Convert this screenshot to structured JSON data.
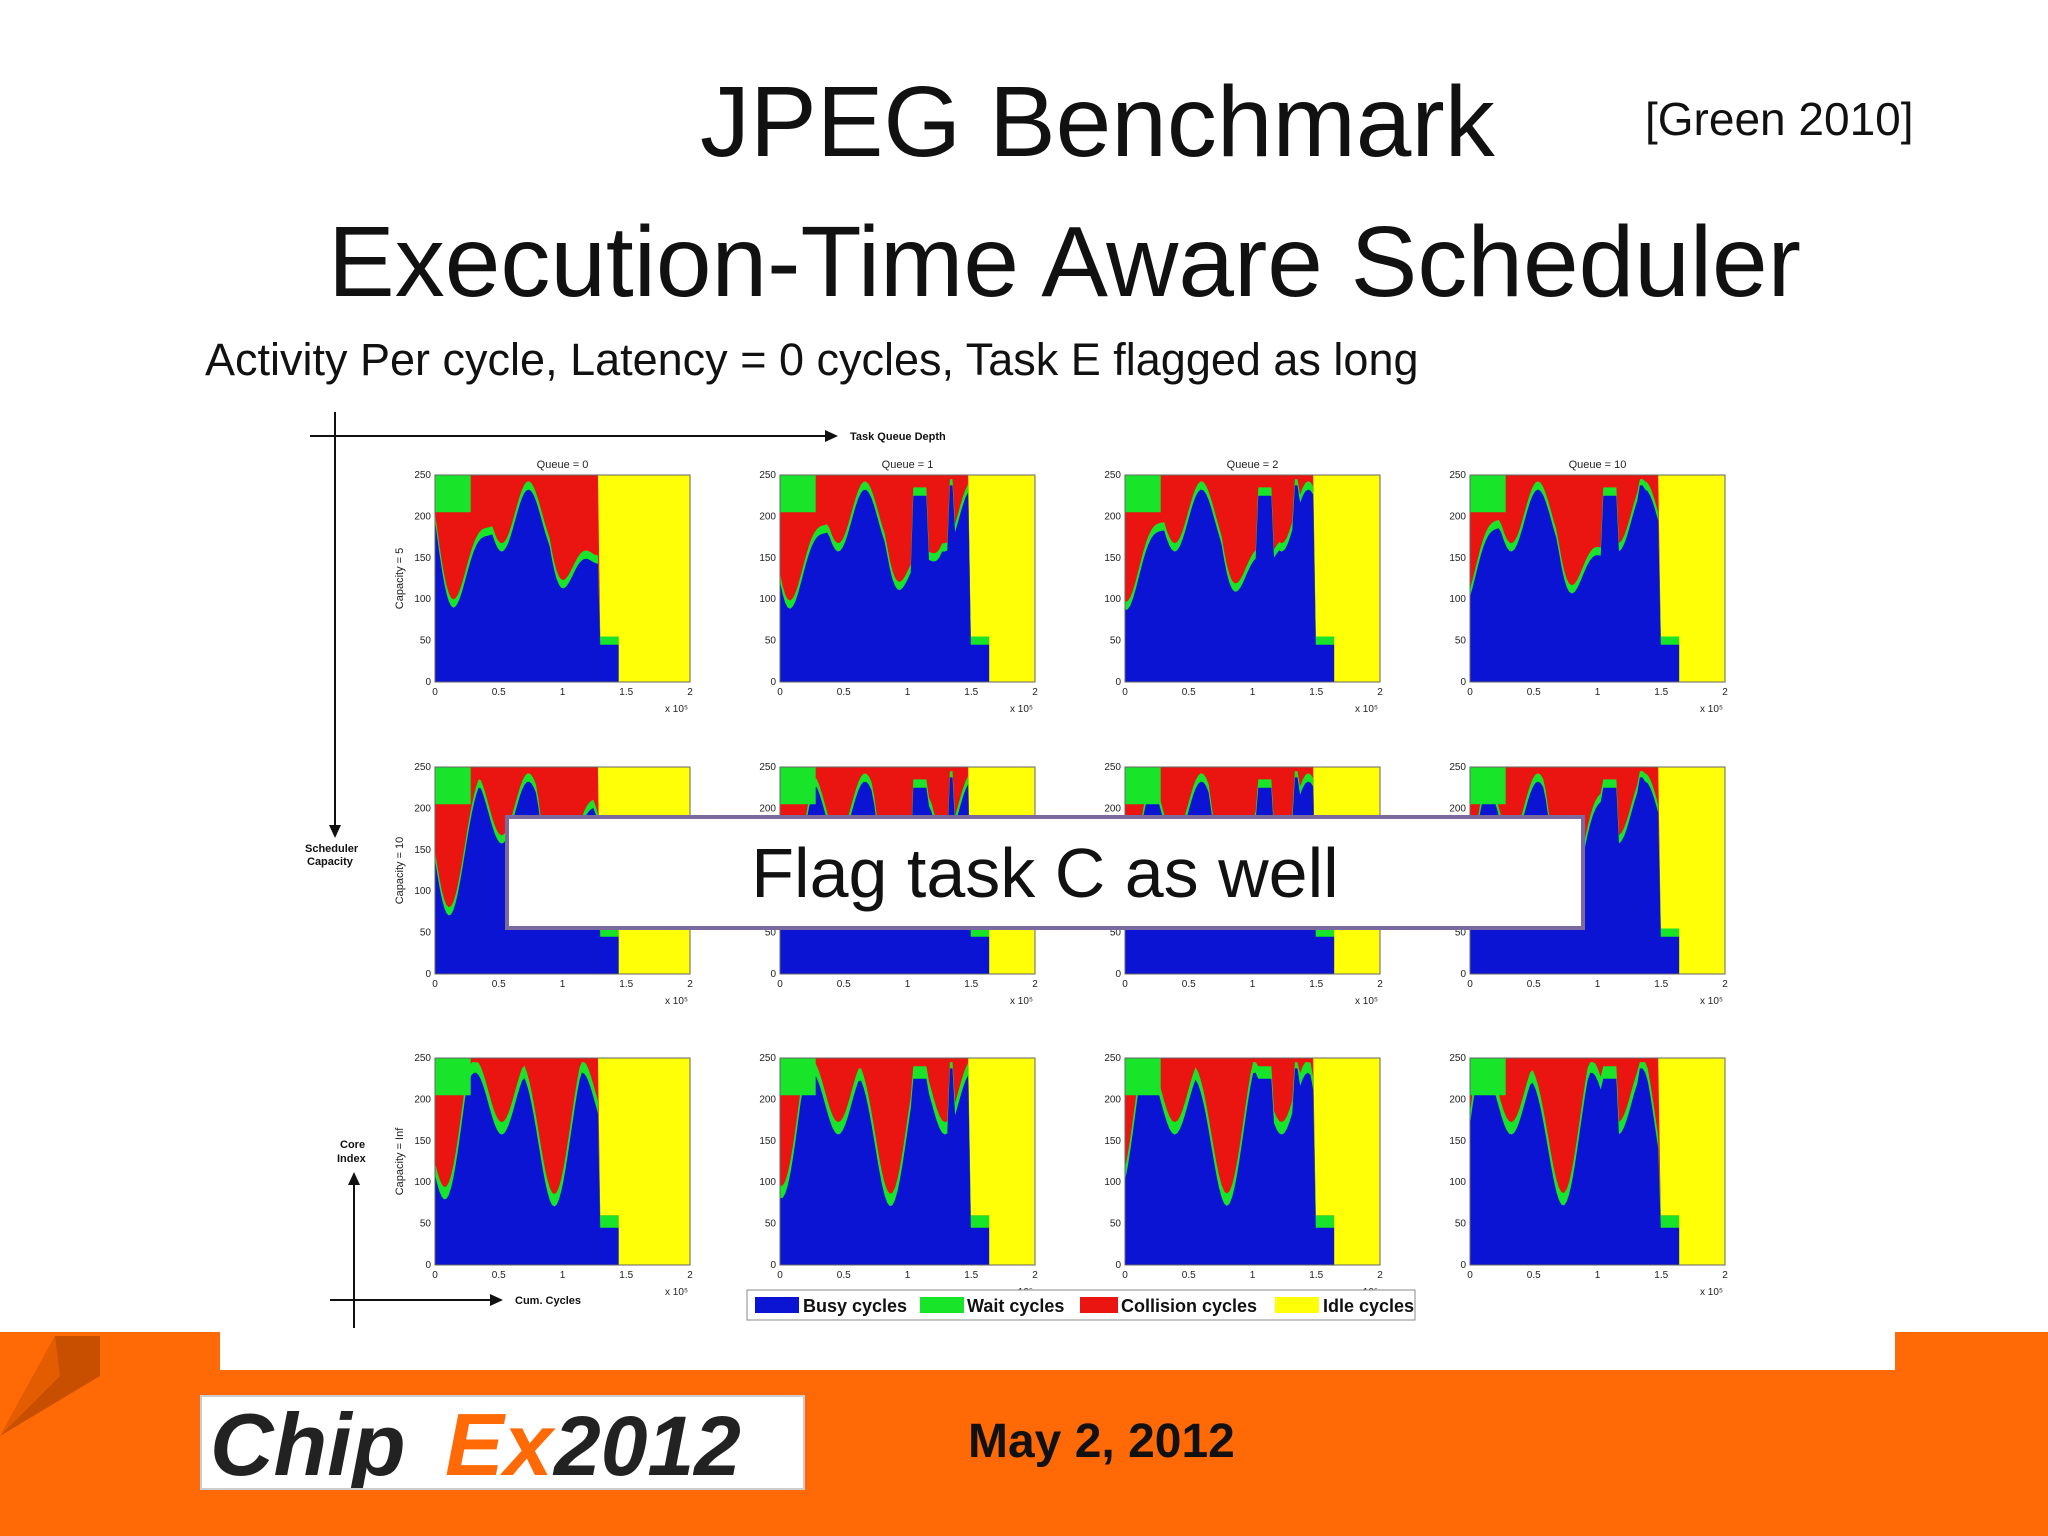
{
  "slide": {
    "title_line1": "JPEG Benchmark",
    "title_line2": "Execution-Time Aware Scheduler",
    "citation": "[Green 2010]",
    "subtitle": "Activity Per cycle, Latency = 0 cycles, Task E flagged as long",
    "callout": "Flag task C as well",
    "footer_date": "May 2, 2012",
    "logo_text_a": "Chip",
    "logo_text_b": "Ex",
    "logo_text_c": "2012"
  },
  "figure": {
    "top_axis_label": "Task Queue Depth",
    "left_axis_label_line1": "Scheduler",
    "left_axis_label_line2": "Capacity",
    "core_index_line1": "Core",
    "core_index_line2": "Index",
    "cum_cycles_label": "Cum. Cycles",
    "column_titles": [
      "Queue = 0",
      "Queue = 1",
      "Queue = 2",
      "Queue = 10"
    ],
    "row_labels": [
      "Capacity = 5",
      "Capacity = 10",
      "Capacity = Inf"
    ],
    "y_ticks": [
      "0",
      "50",
      "100",
      "150",
      "200",
      "250"
    ],
    "x_ticks": [
      "0",
      "0.5",
      "1",
      "1.5",
      "2"
    ],
    "x_multiplier": "x 10⁵",
    "legend": [
      "Busy cycles",
      "Wait cycles",
      "Collision cycles",
      "Idle cycles"
    ],
    "colors": {
      "busy": "#0a14d2",
      "wait": "#18e42a",
      "collision": "#ea1410",
      "idle": "#ffff08"
    }
  },
  "chart_data": {
    "type": "area",
    "series_names": [
      "Busy cycles",
      "Wait cycles",
      "Collision cycles",
      "Idle cycles"
    ],
    "columns": [
      "Queue = 0",
      "Queue = 1",
      "Queue = 2",
      "Queue = 10"
    ],
    "rows": [
      "Capacity = 5",
      "Capacity = 10",
      "Capacity = Inf"
    ],
    "xlim": [
      0,
      2
    ],
    "ylim": [
      0,
      250
    ],
    "grid": false
  }
}
